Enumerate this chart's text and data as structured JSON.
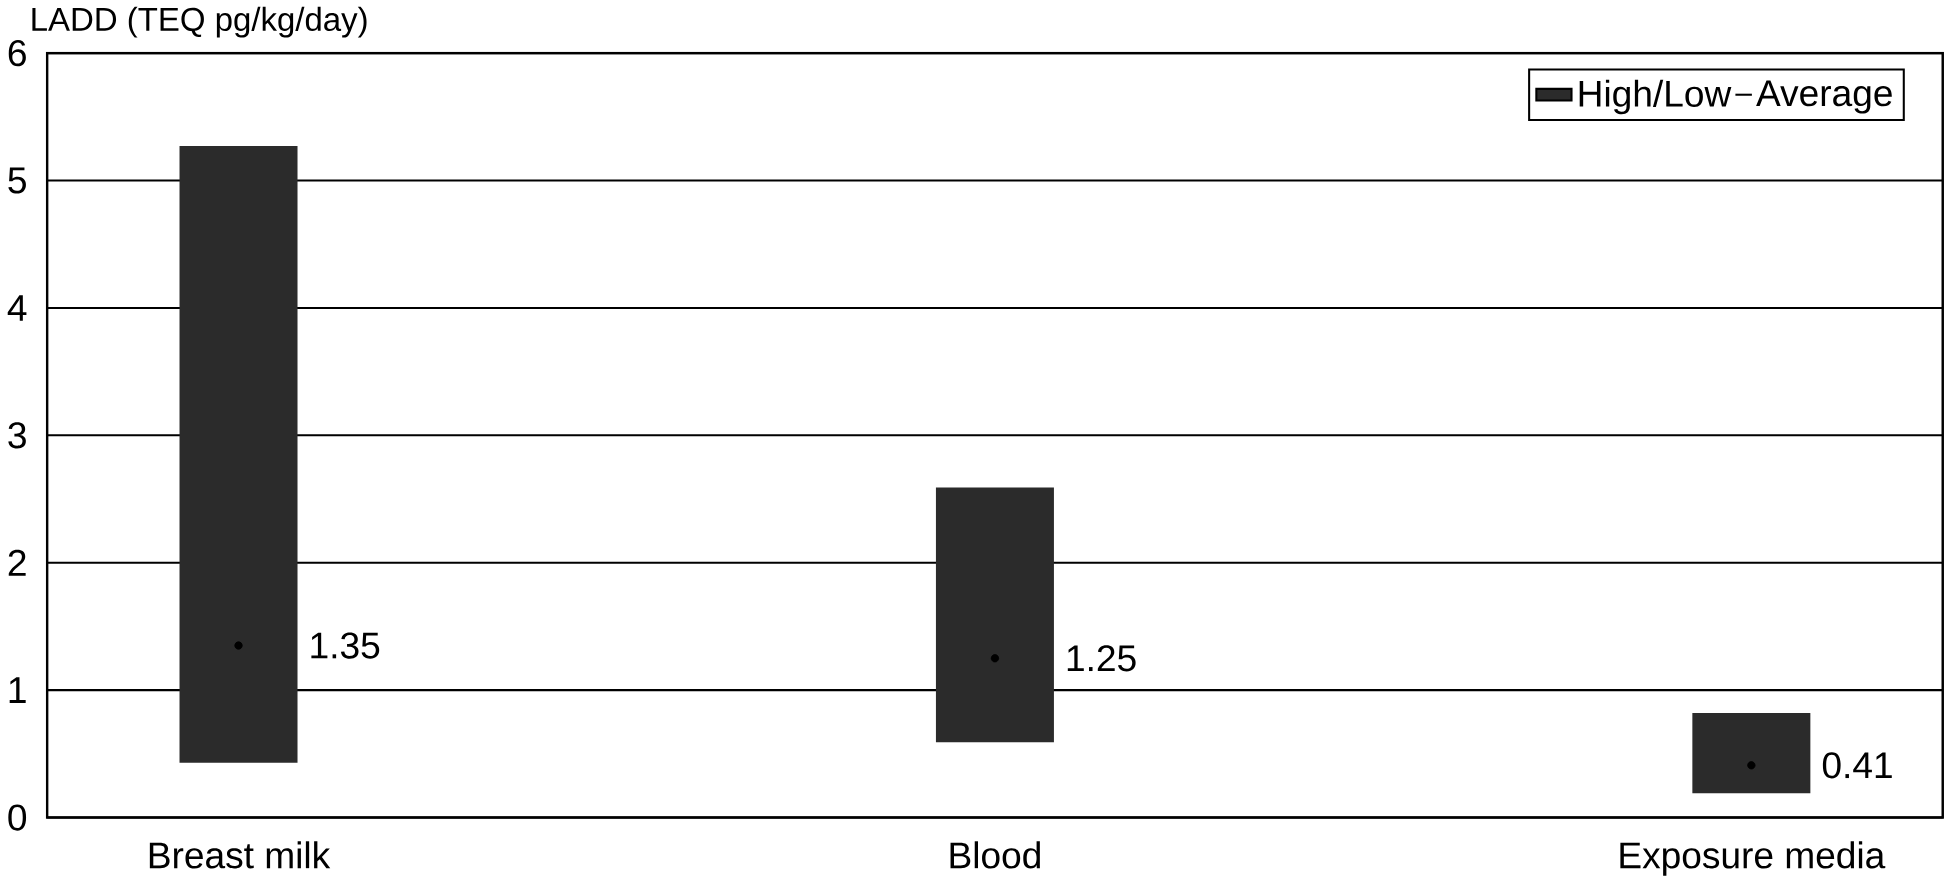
{
  "chart_data": {
    "type": "bar",
    "ylabel": "LADD (TEQ pg/kg/day)",
    "categories": [
      "Breast milk",
      "Blood",
      "Exposure media"
    ],
    "series": [
      {
        "name": "High/Low",
        "color": "#2b2b2b",
        "base": [
          0.43,
          0.59,
          0.19
        ],
        "values": [
          4.84,
          2.0,
          0.63
        ]
      },
      {
        "name": "Average",
        "type": "scatter",
        "color": "#000000",
        "values": [
          1.35,
          1.25,
          0.41
        ],
        "value_labels": [
          "1.35",
          "1.25",
          "0.41"
        ]
      }
    ],
    "ylim": [
      0,
      6
    ],
    "yticks": [
      0,
      1,
      2,
      3,
      4,
      5,
      6
    ],
    "grid": "y",
    "legend": "top right",
    "marker": "circle"
  }
}
